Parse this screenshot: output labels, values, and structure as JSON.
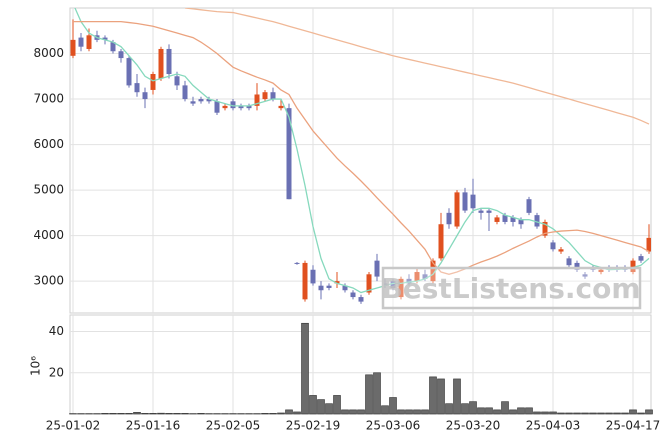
{
  "chart_data": [
    {
      "type": "candlestick",
      "ylim": [
        2300,
        9000
      ],
      "yticks": [
        3000,
        4000,
        5000,
        6000,
        7000,
        8000
      ],
      "grid": true,
      "up_color": "#e0501f",
      "down_color": "#6a70b3",
      "open": [
        7950,
        8350,
        8100,
        8400,
        8350,
        8250,
        8050,
        7900,
        7350,
        7150,
        7200,
        7450,
        8100,
        7500,
        7300,
        6950,
        7000,
        7000,
        6950,
        6800,
        6950,
        6850,
        6850,
        6850,
        7000,
        7150,
        6800,
        6800,
        3400,
        2600,
        3250,
        2900,
        2900,
        2950,
        2900,
        2750,
        2650,
        2750,
        3450,
        2950,
        3000,
        2650,
        3050,
        3000,
        3150,
        3000,
        3500,
        4500,
        4200,
        4950,
        4900,
        4550,
        4550,
        4300,
        4450,
        4400,
        4350,
        4800,
        4450,
        4000,
        3850,
        3650,
        3500,
        3400,
        3150,
        3300,
        3200,
        3300,
        3300,
        3300,
        3200,
        3550,
        3650
      ],
      "high": [
        8750,
        8450,
        8550,
        8500,
        8400,
        8300,
        8100,
        7950,
        7550,
        7250,
        7600,
        8150,
        8200,
        7600,
        7400,
        7050,
        7050,
        7050,
        7000,
        6900,
        7000,
        6900,
        6900,
        7350,
        7200,
        7250,
        7000,
        6900,
        3420,
        3450,
        3350,
        3000,
        2950,
        3200,
        2950,
        2800,
        2700,
        3200,
        3600,
        3050,
        3050,
        3100,
        3150,
        3300,
        3250,
        3500,
        4500,
        4600,
        5000,
        5050,
        5250,
        4600,
        4600,
        4450,
        4500,
        4450,
        4400,
        4850,
        4500,
        4350,
        3900,
        3750,
        3550,
        3450,
        3200,
        3350,
        3300,
        3350,
        3350,
        3350,
        3500,
        3600,
        4250
      ],
      "low": [
        7900,
        8050,
        8050,
        8250,
        8200,
        8000,
        7800,
        7250,
        7050,
        6800,
        7100,
        7400,
        7450,
        7200,
        6950,
        6850,
        6900,
        6900,
        6650,
        6750,
        6750,
        6750,
        6750,
        6750,
        6950,
        6950,
        6750,
        4800,
        3360,
        2550,
        2900,
        2600,
        2800,
        2850,
        2750,
        2600,
        2500,
        2700,
        3000,
        2850,
        2800,
        2600,
        2900,
        2950,
        3000,
        2950,
        3450,
        4150,
        4150,
        4500,
        4500,
        4350,
        4100,
        4250,
        4250,
        4200,
        4150,
        4450,
        4150,
        3950,
        3650,
        3600,
        3300,
        3200,
        3050,
        3200,
        3150,
        3200,
        3200,
        3200,
        3150,
        3400,
        3600
      ],
      "close": [
        8300,
        8150,
        8400,
        8300,
        8300,
        8050,
        7900,
        7300,
        7150,
        7000,
        7550,
        8100,
        7550,
        7300,
        7000,
        6900,
        6950,
        6950,
        6700,
        6850,
        6800,
        6800,
        6800,
        7100,
        7150,
        7000,
        6850,
        4800,
        3380,
        3400,
        2950,
        2800,
        2850,
        3000,
        2800,
        2650,
        2550,
        3150,
        3100,
        2900,
        2850,
        3050,
        2950,
        3200,
        3050,
        3450,
        4250,
        4250,
        4950,
        4550,
        4600,
        4500,
        4500,
        4400,
        4300,
        4300,
        4250,
        4500,
        4200,
        4300,
        3700,
        3700,
        3350,
        3250,
        3100,
        3250,
        3250,
        3250,
        3250,
        3250,
        3450,
        3450,
        3950
      ],
      "series": [
        {
          "color": "#86d9bd",
          "values": [
            9100,
            8700,
            8450,
            8350,
            8300,
            8250,
            8150,
            7950,
            7750,
            7500,
            7400,
            7450,
            7500,
            7550,
            7500,
            7300,
            7150,
            7000,
            6950,
            6900,
            6850,
            6850,
            6850,
            6900,
            6950,
            7000,
            7000,
            6600,
            5900,
            5100,
            4200,
            3500,
            3050,
            2950,
            2900,
            2850,
            2750,
            2800,
            2850,
            2900,
            2950,
            2950,
            2980,
            3000,
            3050,
            3150,
            3400,
            3700,
            4000,
            4300,
            4550,
            4600,
            4600,
            4550,
            4450,
            4400,
            4350,
            4350,
            4300,
            4250,
            4150,
            4000,
            3850,
            3650,
            3450,
            3350,
            3300,
            3250,
            3260,
            3270,
            3300,
            3350,
            3500
          ]
        },
        {
          "color": "#eba27e",
          "values": [
            8700,
            8700,
            8700,
            8700,
            8700,
            8700,
            8700,
            8680,
            8660,
            8630,
            8600,
            8550,
            8500,
            8450,
            8400,
            8350,
            8250,
            8130,
            8000,
            7850,
            7700,
            7620,
            7550,
            7480,
            7420,
            7350,
            7200,
            7100,
            6800,
            6550,
            6300,
            6100,
            5900,
            5700,
            5530,
            5370,
            5200,
            5020,
            4830,
            4650,
            4470,
            4280,
            4100,
            3900,
            3700,
            3400,
            3200,
            3150,
            3200,
            3270,
            3350,
            3420,
            3480,
            3550,
            3630,
            3720,
            3800,
            3880,
            3970,
            4050,
            4080,
            4100,
            4110,
            4120,
            4090,
            4050,
            4000,
            3950,
            3900,
            3850,
            3800,
            3750,
            3650
          ]
        },
        {
          "color": "#f0b897",
          "values": [
            null,
            null,
            null,
            null,
            null,
            null,
            null,
            null,
            null,
            null,
            null,
            null,
            null,
            null,
            9000,
            8980,
            8960,
            8940,
            8920,
            8910,
            8900,
            8860,
            8820,
            8780,
            8740,
            8700,
            8650,
            8600,
            8550,
            8500,
            8450,
            8400,
            8350,
            8300,
            8250,
            8200,
            8150,
            8100,
            8050,
            8000,
            7950,
            7910,
            7870,
            7830,
            7790,
            7750,
            7710,
            7670,
            7630,
            7590,
            7550,
            7510,
            7470,
            7430,
            7390,
            7350,
            7300,
            7250,
            7200,
            7150,
            7100,
            7050,
            7000,
            6950,
            6900,
            6850,
            6800,
            6750,
            6700,
            6650,
            6600,
            6530,
            6450
          ]
        }
      ],
      "watermark": "BestListens.com"
    },
    {
      "type": "bar",
      "y_label": "10⁶",
      "ylim": [
        0,
        48
      ],
      "yticks": [
        20,
        40
      ],
      "grid": true,
      "color": "#6b6b6b",
      "categories": [
        "25-01-02",
        null,
        null,
        null,
        null,
        null,
        null,
        null,
        null,
        null,
        "25-01-16",
        null,
        null,
        null,
        null,
        null,
        null,
        null,
        null,
        null,
        "25-02-05",
        null,
        null,
        null,
        null,
        null,
        null,
        null,
        null,
        null,
        "25-02-19",
        null,
        null,
        null,
        null,
        null,
        null,
        null,
        null,
        null,
        "25-03-06",
        null,
        null,
        null,
        null,
        null,
        null,
        null,
        null,
        null,
        "25-03-20",
        null,
        null,
        null,
        null,
        null,
        null,
        null,
        null,
        null,
        "25-04-03",
        null,
        null,
        null,
        null,
        null,
        null,
        null,
        null,
        null,
        "25-04-17",
        null,
        null
      ],
      "values": [
        0.2,
        0.2,
        0.2,
        0.2,
        0.3,
        0.3,
        0.3,
        0.3,
        0.8,
        0.3,
        0.3,
        0.4,
        0.3,
        0.3,
        0.3,
        0.2,
        0.3,
        0.2,
        0.2,
        0.2,
        0.2,
        0.2,
        0.2,
        0.2,
        0.3,
        0.3,
        0.5,
        2,
        1,
        44,
        9,
        7,
        5,
        9,
        2,
        2,
        2,
        19,
        20,
        4,
        8,
        2,
        2,
        2,
        2,
        18,
        17,
        5,
        17,
        5,
        6,
        3,
        3,
        2,
        6,
        2,
        3,
        3,
        1,
        1,
        1,
        0.5,
        0.5,
        0.5,
        0.5,
        0.5,
        0.5,
        0.5,
        0.5,
        0.5,
        2,
        0.5,
        2
      ]
    }
  ]
}
